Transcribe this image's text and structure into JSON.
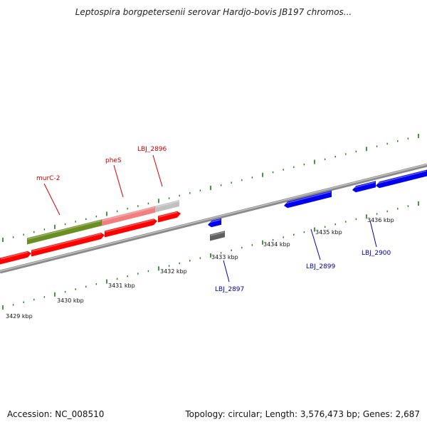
{
  "title": "Leptospira borgpetersenii serovar Hardjo-bovis JB197 chromos...",
  "accession": "Accession: NC_008510",
  "summary": "Topology: circular; Length: 3,576,473 bp; Genes: 2,687",
  "colors": {
    "forward_gene": "#ff0000",
    "reverse_gene": "#0000ee",
    "highlight_gene": "#6b8e23",
    "light_gene": "#f08080",
    "grey_gene": "#c0c0c0",
    "dark_grey_gene": "#606060",
    "tick": "#1a7a1a",
    "backbone": "#909090",
    "forward_label": "#cc0000",
    "reverse_label": "#0000aa"
  },
  "scale_labels": [
    "3429 kbp",
    "3430 kbp",
    "3431 kbp",
    "3432 kbp",
    "3433 kbp",
    "3434 kbp",
    "3435 kbp",
    "3436 kbp"
  ],
  "gene_labels": {
    "forward": [
      "murC-2",
      "pheS",
      "LBJ_2896"
    ],
    "reverse": [
      "LBJ_2897",
      "LBJ_2899",
      "LBJ_2900"
    ]
  }
}
